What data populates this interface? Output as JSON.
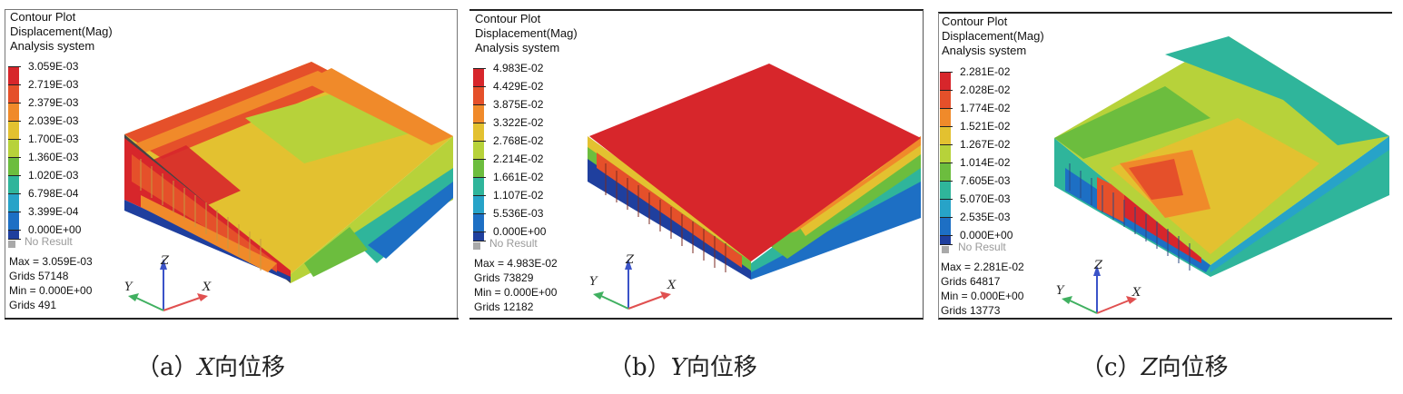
{
  "header": {
    "line1": "Contour Plot",
    "line2": "Displacement(Mag)",
    "line3": "Analysis system"
  },
  "no_result": "No Result",
  "legend_colors": [
    "#d7262b",
    "#e5502a",
    "#f08a2a",
    "#e3c130",
    "#b7d23a",
    "#6cbd3e",
    "#2fb59b",
    "#27a3c8",
    "#1d6fc4",
    "#1f3f9e"
  ],
  "panels": [
    {
      "levels": [
        "3.059E-03",
        "2.719E-03",
        "2.379E-03",
        "2.039E-03",
        "1.700E-03",
        "1.360E-03",
        "1.020E-03",
        "6.798E-04",
        "3.399E-04",
        "0.000E+00"
      ],
      "max": "Max = 3.059E-03",
      "grids_max": "Grids 57148",
      "min": "Min = 0.000E+00",
      "grids_min": "Grids 491",
      "caption_prefix": "（a）",
      "caption_var": "X",
      "caption_suffix": "向位移"
    },
    {
      "levels": [
        "4.983E-02",
        "4.429E-02",
        "3.875E-02",
        "3.322E-02",
        "2.768E-02",
        "2.214E-02",
        "1.661E-02",
        "1.107E-02",
        "5.536E-03",
        "0.000E+00"
      ],
      "max": "Max = 4.983E-02",
      "grids_max": "Grids 73829",
      "min": "Min = 0.000E+00",
      "grids_min": "Grids 12182",
      "caption_prefix": "（b）",
      "caption_var": "Y",
      "caption_suffix": "向位移"
    },
    {
      "levels": [
        "2.281E-02",
        "2.028E-02",
        "1.774E-02",
        "1.521E-02",
        "1.267E-02",
        "1.014E-02",
        "7.605E-03",
        "5.070E-03",
        "2.535E-03",
        "0.000E+00"
      ],
      "max": "Max = 2.281E-02",
      "grids_max": "Grids 64817",
      "min": "Min = 0.000E+00",
      "grids_min": "Grids 13773",
      "caption_prefix": "（c）",
      "caption_var": "Z",
      "caption_suffix": "向位移"
    }
  ],
  "axes": {
    "x": "X",
    "y": "Y",
    "z": "Z"
  }
}
